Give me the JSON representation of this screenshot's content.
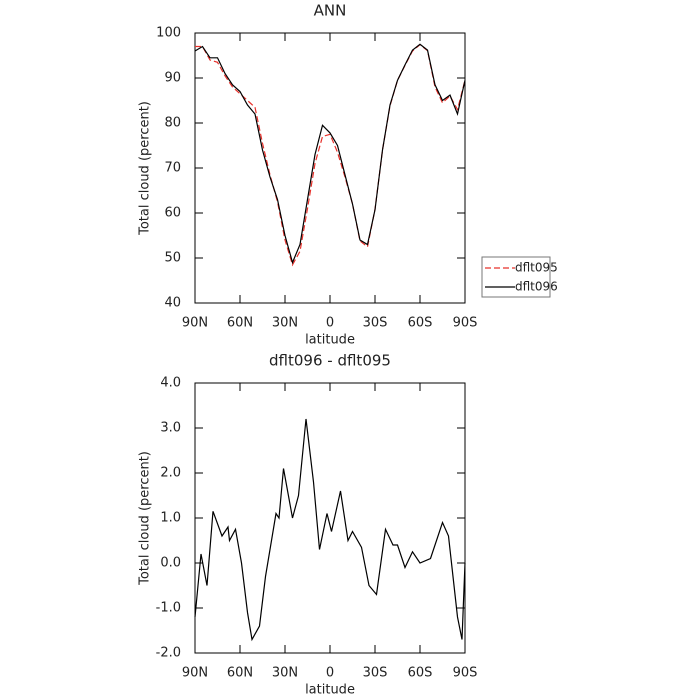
{
  "chart_data": [
    {
      "type": "line",
      "title": "ANN",
      "x_label": "latitude",
      "y_label": "Total cloud (percent)",
      "x": [
        90,
        85,
        80,
        75,
        70,
        65,
        60,
        55,
        50,
        45,
        40,
        35,
        30,
        25,
        20,
        15,
        10,
        5,
        0,
        -5,
        -10,
        -15,
        -20,
        -25,
        -30,
        -35,
        -40,
        -45,
        -50,
        -55,
        -60,
        -65,
        -70,
        -75,
        -80,
        -85,
        -90
      ],
      "series": [
        {
          "name": "dflt095",
          "color": "#e8302a",
          "line_style": "dashed",
          "values": [
            97,
            97,
            94,
            93.5,
            90.5,
            88,
            86.5,
            85,
            83.5,
            75.5,
            68.5,
            62.5,
            54,
            48.5,
            51.5,
            61,
            71,
            77,
            77.5,
            73.5,
            68,
            62,
            53.8,
            52.5,
            60.8,
            74,
            83.8,
            89.5,
            92.8,
            96,
            97.4,
            96.1,
            88,
            84.5,
            86,
            83,
            89.5
          ]
        },
        {
          "name": "dflt096",
          "color": "#000000",
          "line_style": "solid",
          "values": [
            96,
            97,
            94.5,
            94.5,
            91,
            88.5,
            87,
            84,
            82,
            74,
            68,
            63,
            55,
            49,
            53,
            63,
            73,
            79.5,
            77.8,
            75,
            68.5,
            62,
            54,
            53,
            60.7,
            74,
            84,
            89.5,
            92.9,
            96.2,
            97.5,
            96.2,
            88.5,
            85,
            86.2,
            82,
            89.5
          ]
        }
      ],
      "xlim": [
        90,
        -90
      ],
      "xticks": [
        {
          "value": 90,
          "label": "90N"
        },
        {
          "value": 60,
          "label": "60N"
        },
        {
          "value": 30,
          "label": "30N"
        },
        0,
        {
          "value": -30,
          "label": "30S"
        },
        {
          "value": -60,
          "label": "60S"
        },
        {
          "value": -90,
          "label": "90S"
        }
      ],
      "ylim": [
        40,
        100
      ],
      "yticks": [
        40,
        50,
        60,
        70,
        80,
        90,
        100
      ],
      "legend": "right"
    },
    {
      "type": "line",
      "title": "dflt096 - dflt095",
      "x_label": "latitude",
      "y_label": "Total cloud (percent)",
      "x": [
        90,
        86,
        82,
        78,
        72,
        68,
        67,
        63,
        59,
        55,
        52,
        47,
        43,
        40,
        36,
        34,
        31,
        25,
        21,
        16,
        11,
        7,
        2,
        -1,
        -7,
        -12,
        -15,
        -21,
        -26,
        -31,
        -37,
        -42,
        -45,
        -50,
        -55,
        -60,
        -67,
        -75,
        -79,
        -85,
        -88,
        -90
      ],
      "values": [
        -1.2,
        0.2,
        -0.5,
        1.15,
        0.6,
        0.8,
        0.5,
        0.75,
        0.0,
        -1.1,
        -1.7,
        -1.4,
        -0.3,
        0.3,
        1.1,
        1.0,
        2.1,
        1.0,
        1.5,
        3.2,
        1.8,
        0.3,
        1.1,
        0.7,
        1.6,
        0.5,
        0.7,
        0.35,
        -0.5,
        -0.7,
        0.75,
        0.4,
        0.4,
        -0.1,
        0.25,
        0.0,
        0.1,
        0.9,
        0.6,
        -1.2,
        -1.7,
        0.0
      ],
      "color": "#000000",
      "xlim": [
        90,
        -90
      ],
      "xticks": [
        {
          "value": 90,
          "label": "90N"
        },
        {
          "value": 60,
          "label": "60N"
        },
        {
          "value": 30,
          "label": "30N"
        },
        0,
        {
          "value": -30,
          "label": "30S"
        },
        {
          "value": -60,
          "label": "60S"
        },
        {
          "value": -90,
          "label": "90S"
        }
      ],
      "ylim": [
        -2,
        4
      ],
      "yticks": [
        {
          "value": -2,
          "label": "-2.0"
        },
        {
          "value": -1,
          "label": "-1.0"
        },
        {
          "value": 0,
          "label": "0.0"
        },
        {
          "value": 1,
          "label": "1.0"
        },
        {
          "value": 2,
          "label": "2.0"
        },
        {
          "value": 3,
          "label": "3.0"
        },
        {
          "value": 4,
          "label": "4.0"
        }
      ]
    }
  ]
}
